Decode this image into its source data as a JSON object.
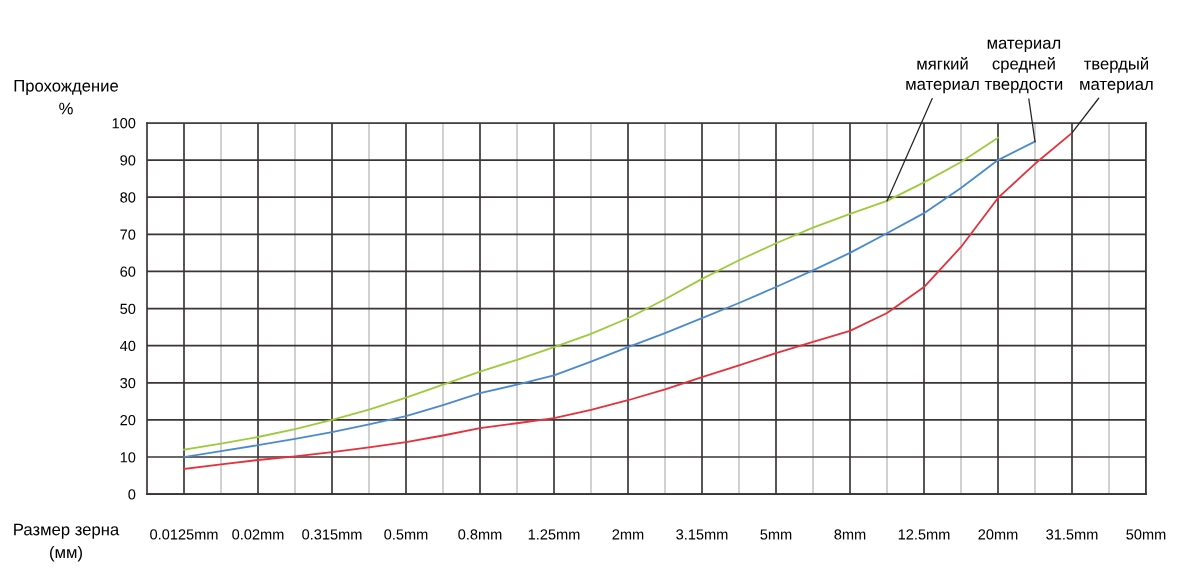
{
  "chart_data": {
    "type": "line",
    "ylabel": "Прохождение\n%",
    "xlabel": "Размер зерна\n(мм)",
    "ylim": [
      0,
      100
    ],
    "yticks": [
      0,
      10,
      20,
      30,
      40,
      50,
      60,
      70,
      80,
      90,
      100
    ],
    "categories": [
      "0.0125mm",
      null,
      "0.02mm",
      null,
      "0.315mm",
      null,
      "0.5mm",
      null,
      "0.8mm",
      null,
      "1.25mm",
      null,
      "2mm",
      null,
      "3.15mm",
      null,
      "5mm",
      null,
      "8mm",
      null,
      "12.5mm",
      null,
      "20mm",
      null,
      "31.5mm",
      null,
      "50mm"
    ],
    "grid": true,
    "legend": false,
    "marker": "none",
    "line_style": "solid",
    "series": [
      {
        "name": "мягкий\nматериал",
        "color": "#9ccc3c",
        "values": [
          12,
          13.6,
          15.4,
          17.5,
          20,
          22.8,
          26,
          29.5,
          33,
          36.2,
          39.6,
          43.2,
          47.4,
          52.5,
          58,
          63,
          67.6,
          71.8,
          75.5,
          79,
          84,
          89.5,
          96,
          null,
          null,
          null,
          null
        ]
      },
      {
        "name": "материал\nсредней\nтвердости",
        "color": "#4a8ad0",
        "values": [
          10,
          11.6,
          13.2,
          14.9,
          16.7,
          18.8,
          21,
          24,
          27.2,
          29.5,
          32,
          35.7,
          39.6,
          43.4,
          47.4,
          51.5,
          55.8,
          60.3,
          65,
          70.3,
          75.7,
          82.5,
          90,
          95,
          null,
          null,
          null
        ]
      },
      {
        "name": "твердый\nматериал",
        "color": "#e8303a",
        "values": [
          6.8,
          8,
          9.2,
          10.2,
          11.3,
          12.6,
          14,
          15.8,
          17.8,
          19.1,
          20.5,
          22.7,
          25.3,
          28.2,
          31.5,
          34.7,
          38,
          41,
          44,
          48.8,
          55.8,
          66.6,
          79.8,
          89,
          97.3,
          null,
          null
        ]
      }
    ]
  }
}
